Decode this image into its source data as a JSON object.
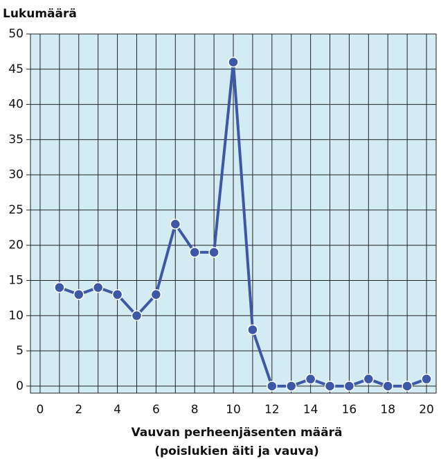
{
  "chart_data": {
    "type": "line",
    "y_axis_label": "Lukumäärä",
    "x_axis_label": [
      "Vauvan perheenjäsenten määrä",
      "(poislukien äiti ja vauva)"
    ],
    "x": [
      1,
      2,
      3,
      4,
      5,
      6,
      7,
      8,
      9,
      10,
      11,
      12,
      13,
      14,
      15,
      16,
      17,
      18,
      19,
      20
    ],
    "series": [
      {
        "name": "Lukumäärä",
        "color": "#3d58a6",
        "values": [
          14,
          13,
          14,
          13,
          10,
          13,
          23,
          19,
          19,
          46,
          8,
          0,
          0,
          1,
          0,
          0,
          1,
          0,
          0,
          1
        ]
      }
    ],
    "xlim": [
      -0.5,
      20.5
    ],
    "xticks": [
      0,
      2,
      4,
      6,
      8,
      10,
      12,
      14,
      16,
      18,
      20
    ],
    "xgrid": [
      0,
      1,
      2,
      3,
      4,
      5,
      6,
      7,
      8,
      9,
      10,
      11,
      12,
      13,
      14,
      15,
      16,
      17,
      18,
      19,
      20
    ],
    "ylim": [
      -1,
      50
    ],
    "yticks": [
      0,
      5,
      10,
      15,
      20,
      25,
      30,
      35,
      40,
      45,
      50
    ],
    "grid": true,
    "background": "#d3ebf2"
  }
}
